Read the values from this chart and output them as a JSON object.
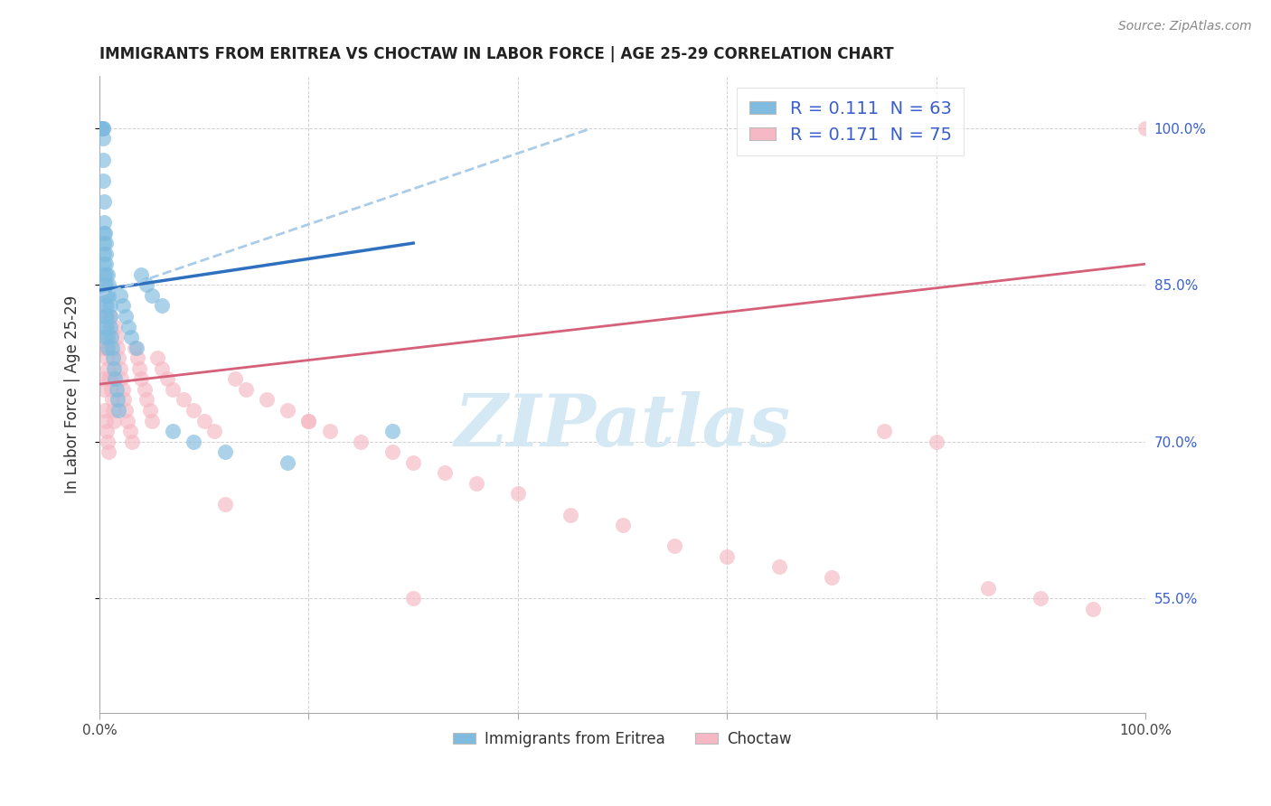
{
  "title": "IMMIGRANTS FROM ERITREA VS CHOCTAW IN LABOR FORCE | AGE 25-29 CORRELATION CHART",
  "source": "Source: ZipAtlas.com",
  "ylabel": "In Labor Force | Age 25-29",
  "legend_label1": "Immigrants from Eritrea",
  "legend_label2": "Choctaw",
  "r1": 0.111,
  "n1": 63,
  "r2": 0.171,
  "n2": 75,
  "color1": "#7fbbde",
  "color2": "#f5b8c4",
  "line_color1": "#2e6fbe",
  "line_color2": "#d4607a",
  "dashed_color": "#aacce8",
  "watermark_text": "ZIPatlas",
  "watermark_color": "#d5e9f5",
  "axis_label_color": "#3a5fcd",
  "title_color": "#222222",
  "xlim": [
    0.0,
    1.0
  ],
  "ylim": [
    0.44,
    1.05
  ],
  "x_ticks": [
    0.0,
    0.2,
    0.4,
    0.6,
    0.8,
    1.0
  ],
  "x_tick_labels": [
    "0.0%",
    "",
    "",
    "",
    "",
    "100.0%"
  ],
  "y_ticks_right": [
    0.55,
    0.7,
    0.85,
    1.0
  ],
  "y_tick_labels_right": [
    "55.0%",
    "70.0%",
    "85.0%",
    "100.0%"
  ],
  "blue_x": [
    0.002,
    0.002,
    0.002,
    0.002,
    0.003,
    0.003,
    0.003,
    0.003,
    0.003,
    0.004,
    0.004,
    0.004,
    0.004,
    0.004,
    0.004,
    0.004,
    0.005,
    0.005,
    0.005,
    0.005,
    0.005,
    0.005,
    0.005,
    0.006,
    0.006,
    0.006,
    0.006,
    0.006,
    0.007,
    0.007,
    0.007,
    0.007,
    0.008,
    0.008,
    0.008,
    0.009,
    0.009,
    0.01,
    0.01,
    0.01,
    0.011,
    0.012,
    0.013,
    0.014,
    0.015,
    0.016,
    0.017,
    0.018,
    0.02,
    0.022,
    0.025,
    0.028,
    0.03,
    0.035,
    0.04,
    0.045,
    0.05,
    0.06,
    0.07,
    0.09,
    0.12,
    0.18,
    0.28
  ],
  "blue_y": [
    1.0,
    1.0,
    1.0,
    1.0,
    1.0,
    1.0,
    0.99,
    0.97,
    0.95,
    0.93,
    0.91,
    0.9,
    0.89,
    0.88,
    0.87,
    0.86,
    0.85,
    0.84,
    0.83,
    0.82,
    0.81,
    0.8,
    0.9,
    0.89,
    0.88,
    0.87,
    0.86,
    0.85,
    0.84,
    0.83,
    0.82,
    0.81,
    0.8,
    0.79,
    0.86,
    0.85,
    0.84,
    0.83,
    0.82,
    0.81,
    0.8,
    0.79,
    0.78,
    0.77,
    0.76,
    0.75,
    0.74,
    0.73,
    0.84,
    0.83,
    0.82,
    0.81,
    0.8,
    0.79,
    0.86,
    0.85,
    0.84,
    0.83,
    0.71,
    0.7,
    0.69,
    0.68,
    0.71
  ],
  "pink_x": [
    0.003,
    0.003,
    0.004,
    0.004,
    0.005,
    0.005,
    0.006,
    0.006,
    0.007,
    0.007,
    0.008,
    0.008,
    0.009,
    0.009,
    0.01,
    0.01,
    0.011,
    0.012,
    0.013,
    0.014,
    0.015,
    0.016,
    0.017,
    0.018,
    0.02,
    0.021,
    0.022,
    0.023,
    0.025,
    0.027,
    0.029,
    0.031,
    0.034,
    0.036,
    0.038,
    0.04,
    0.043,
    0.045,
    0.048,
    0.05,
    0.055,
    0.06,
    0.065,
    0.07,
    0.08,
    0.09,
    0.1,
    0.11,
    0.13,
    0.14,
    0.16,
    0.18,
    0.2,
    0.22,
    0.25,
    0.28,
    0.3,
    0.33,
    0.36,
    0.4,
    0.45,
    0.5,
    0.55,
    0.6,
    0.65,
    0.7,
    0.75,
    0.8,
    0.85,
    0.9,
    0.95,
    1.0,
    0.12,
    0.2,
    0.3
  ],
  "pink_y": [
    0.79,
    0.76,
    0.82,
    0.75,
    0.8,
    0.73,
    0.79,
    0.72,
    0.78,
    0.71,
    0.77,
    0.7,
    0.76,
    0.69,
    0.82,
    0.76,
    0.75,
    0.74,
    0.73,
    0.72,
    0.81,
    0.8,
    0.79,
    0.78,
    0.77,
    0.76,
    0.75,
    0.74,
    0.73,
    0.72,
    0.71,
    0.7,
    0.79,
    0.78,
    0.77,
    0.76,
    0.75,
    0.74,
    0.73,
    0.72,
    0.78,
    0.77,
    0.76,
    0.75,
    0.74,
    0.73,
    0.72,
    0.71,
    0.76,
    0.75,
    0.74,
    0.73,
    0.72,
    0.71,
    0.7,
    0.69,
    0.68,
    0.67,
    0.66,
    0.65,
    0.63,
    0.62,
    0.6,
    0.59,
    0.58,
    0.57,
    0.71,
    0.7,
    0.56,
    0.55,
    0.54,
    1.0,
    0.64,
    0.72,
    0.55
  ]
}
